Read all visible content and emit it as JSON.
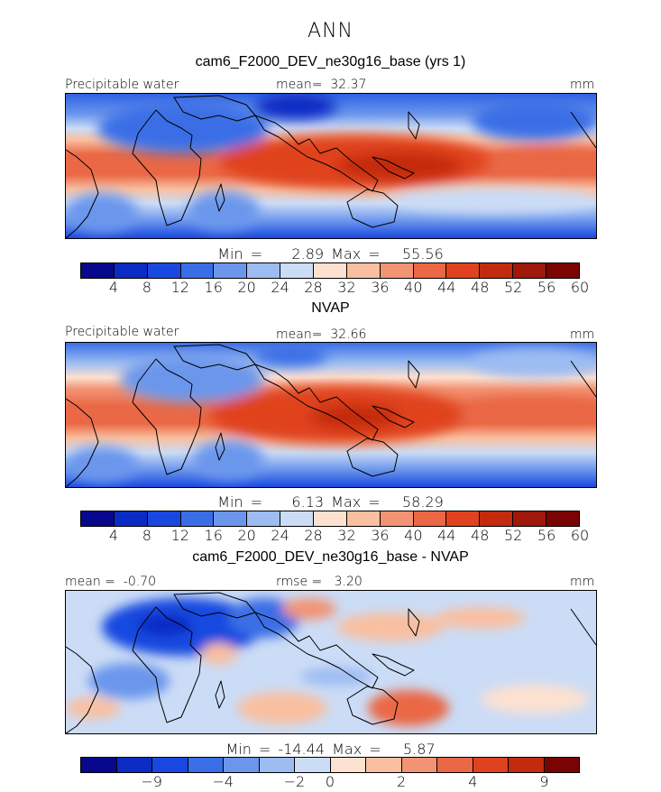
{
  "figure_title": "ANN",
  "palettes": {
    "absolute": [
      "#08088c",
      "#0b2cc4",
      "#1848e0",
      "#3a6ee6",
      "#6b96ec",
      "#9cbcf2",
      "#cbdcf6",
      "#fde1d0",
      "#f9bfa0",
      "#f29474",
      "#ea6845",
      "#e0421f",
      "#c42a0e",
      "#a0180a",
      "#7a0403"
    ],
    "difference": [
      "#08088c",
      "#0b2cc4",
      "#1848e0",
      "#3a6ee6",
      "#6b96ec",
      "#9cbcf2",
      "#cbdcf6",
      "#fde1d0",
      "#f9bfa0",
      "#f29474",
      "#ea6845",
      "#e0421f",
      "#c42a0e",
      "#7a0403"
    ]
  },
  "chart_data": [
    {
      "type": "heatmap",
      "title": "cam6_F2000_DEV_ne30g16_base (yrs 1)",
      "variable": "Precipitable water",
      "units": "mm",
      "mean_label": "mean=",
      "mean": "32.37",
      "min_label": "Min =",
      "min": "2.89",
      "max_label": "Max =",
      "max": "55.56",
      "colorbar_levels": [
        "4",
        "8",
        "12",
        "16",
        "20",
        "24",
        "28",
        "32",
        "36",
        "40",
        "44",
        "48",
        "52",
        "56",
        "60"
      ]
    },
    {
      "type": "heatmap",
      "title": "NVAP",
      "variable": "Precipitable water",
      "units": "mm",
      "mean_label": "mean=",
      "mean": "32.66",
      "min_label": "Min =",
      "min": "6.13",
      "max_label": "Max =",
      "max": "58.29",
      "colorbar_levels": [
        "4",
        "8",
        "12",
        "16",
        "20",
        "24",
        "28",
        "32",
        "36",
        "40",
        "44",
        "48",
        "52",
        "56",
        "60"
      ]
    },
    {
      "type": "heatmap",
      "title": "cam6_F2000_DEV_ne30g16_base - NVAP",
      "units": "mm",
      "mean_label": "mean =",
      "mean": "-0.70",
      "rmse_label": "rmse =",
      "rmse": "3.20",
      "min_label": "Min =",
      "min": "-14.44",
      "max_label": "Max =",
      "max": "5.87",
      "colorbar_levels": [
        "-9",
        "-4",
        "-2",
        "0",
        "2",
        "4",
        "9"
      ]
    }
  ]
}
